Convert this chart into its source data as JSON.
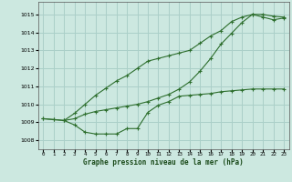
{
  "bg_color": "#cce8e0",
  "grid_color": "#aacfc8",
  "line_color": "#2d6e2d",
  "xlim": [
    -0.5,
    23.5
  ],
  "ylim": [
    1007.5,
    1015.7
  ],
  "yticks": [
    1008,
    1009,
    1010,
    1011,
    1012,
    1013,
    1014,
    1015
  ],
  "xticks": [
    0,
    1,
    2,
    3,
    4,
    5,
    6,
    7,
    8,
    9,
    10,
    11,
    12,
    13,
    14,
    15,
    16,
    17,
    18,
    19,
    20,
    21,
    22,
    23
  ],
  "series_low_x": [
    0,
    1,
    2,
    3,
    4,
    5,
    6,
    7,
    8,
    9,
    10,
    11,
    12,
    13,
    14,
    15,
    16,
    17,
    18,
    19,
    20,
    21,
    22,
    23
  ],
  "series_low_y": [
    1009.2,
    1009.15,
    1009.1,
    1008.85,
    1008.45,
    1008.35,
    1008.35,
    1008.35,
    1008.65,
    1008.65,
    1009.55,
    1009.95,
    1010.15,
    1010.45,
    1010.5,
    1010.55,
    1010.6,
    1010.7,
    1010.75,
    1010.8,
    1010.85,
    1010.85,
    1010.85,
    1010.85
  ],
  "series_mid_x": [
    0,
    1,
    2,
    3,
    4,
    5,
    6,
    7,
    8,
    9,
    10,
    11,
    12,
    13,
    14,
    15,
    16,
    17,
    18,
    19,
    20,
    21,
    22,
    23
  ],
  "series_mid_y": [
    1009.2,
    1009.15,
    1009.1,
    1009.2,
    1009.45,
    1009.6,
    1009.7,
    1009.8,
    1009.9,
    1010.0,
    1010.15,
    1010.35,
    1010.55,
    1010.85,
    1011.25,
    1011.85,
    1012.55,
    1013.35,
    1013.95,
    1014.55,
    1015.0,
    1015.0,
    1014.9,
    1014.85
  ],
  "series_high_x": [
    2,
    3,
    4,
    5,
    6,
    7,
    8,
    9,
    10,
    11,
    12,
    13,
    14,
    15,
    16,
    17,
    18,
    19,
    20,
    21,
    22,
    23
  ],
  "series_high_y": [
    1009.1,
    1009.5,
    1010.0,
    1010.5,
    1010.9,
    1011.3,
    1011.6,
    1012.0,
    1012.4,
    1012.55,
    1012.7,
    1012.85,
    1013.0,
    1013.4,
    1013.8,
    1014.1,
    1014.6,
    1014.85,
    1015.0,
    1014.85,
    1014.7,
    1014.8
  ],
  "xlabel": "Graphe pression niveau de la mer (hPa)"
}
